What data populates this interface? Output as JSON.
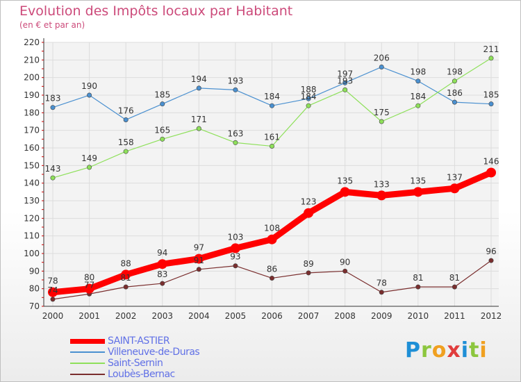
{
  "title": "Evolution des Impôts locaux par Habitant",
  "subtitle": "(en € et par an)",
  "logo": [
    "P",
    "r",
    "o",
    "x",
    "i",
    "t",
    "i"
  ],
  "chart_data": {
    "type": "line",
    "title": "Evolution des Impôts locaux par Habitant",
    "subtitle": "(en € et par an)",
    "x": [
      "2000",
      "2001",
      "2002",
      "2003",
      "2004",
      "2005",
      "2006",
      "2007",
      "2008",
      "2009",
      "2010",
      "2011",
      "2012"
    ],
    "ylim": [
      70,
      220
    ],
    "yticks": [
      70,
      80,
      90,
      100,
      110,
      120,
      130,
      140,
      150,
      160,
      170,
      180,
      190,
      200,
      210,
      220
    ],
    "grid": true,
    "legend_position": "bottom-left",
    "series": [
      {
        "name": "SAINT-ASTIER",
        "color": "#ff0000",
        "values": [
          78,
          80,
          88,
          94,
          97,
          103,
          108,
          123,
          135,
          133,
          135,
          137,
          146
        ]
      },
      {
        "name": "Villeneuve-de-Duras",
        "color": "#4a90d0",
        "values": [
          183,
          190,
          176,
          185,
          194,
          193,
          184,
          188,
          197,
          206,
          198,
          186,
          185
        ]
      },
      {
        "name": "Saint-Sernin",
        "color": "#8ee05a",
        "values": [
          143,
          149,
          158,
          165,
          171,
          163,
          161,
          184,
          193,
          175,
          184,
          198,
          211
        ]
      },
      {
        "name": "Loubès-Bernac",
        "color": "#7a2e2e",
        "values": [
          74,
          77,
          81,
          83,
          91,
          93,
          86,
          89,
          90,
          78,
          81,
          81,
          96
        ]
      }
    ]
  }
}
